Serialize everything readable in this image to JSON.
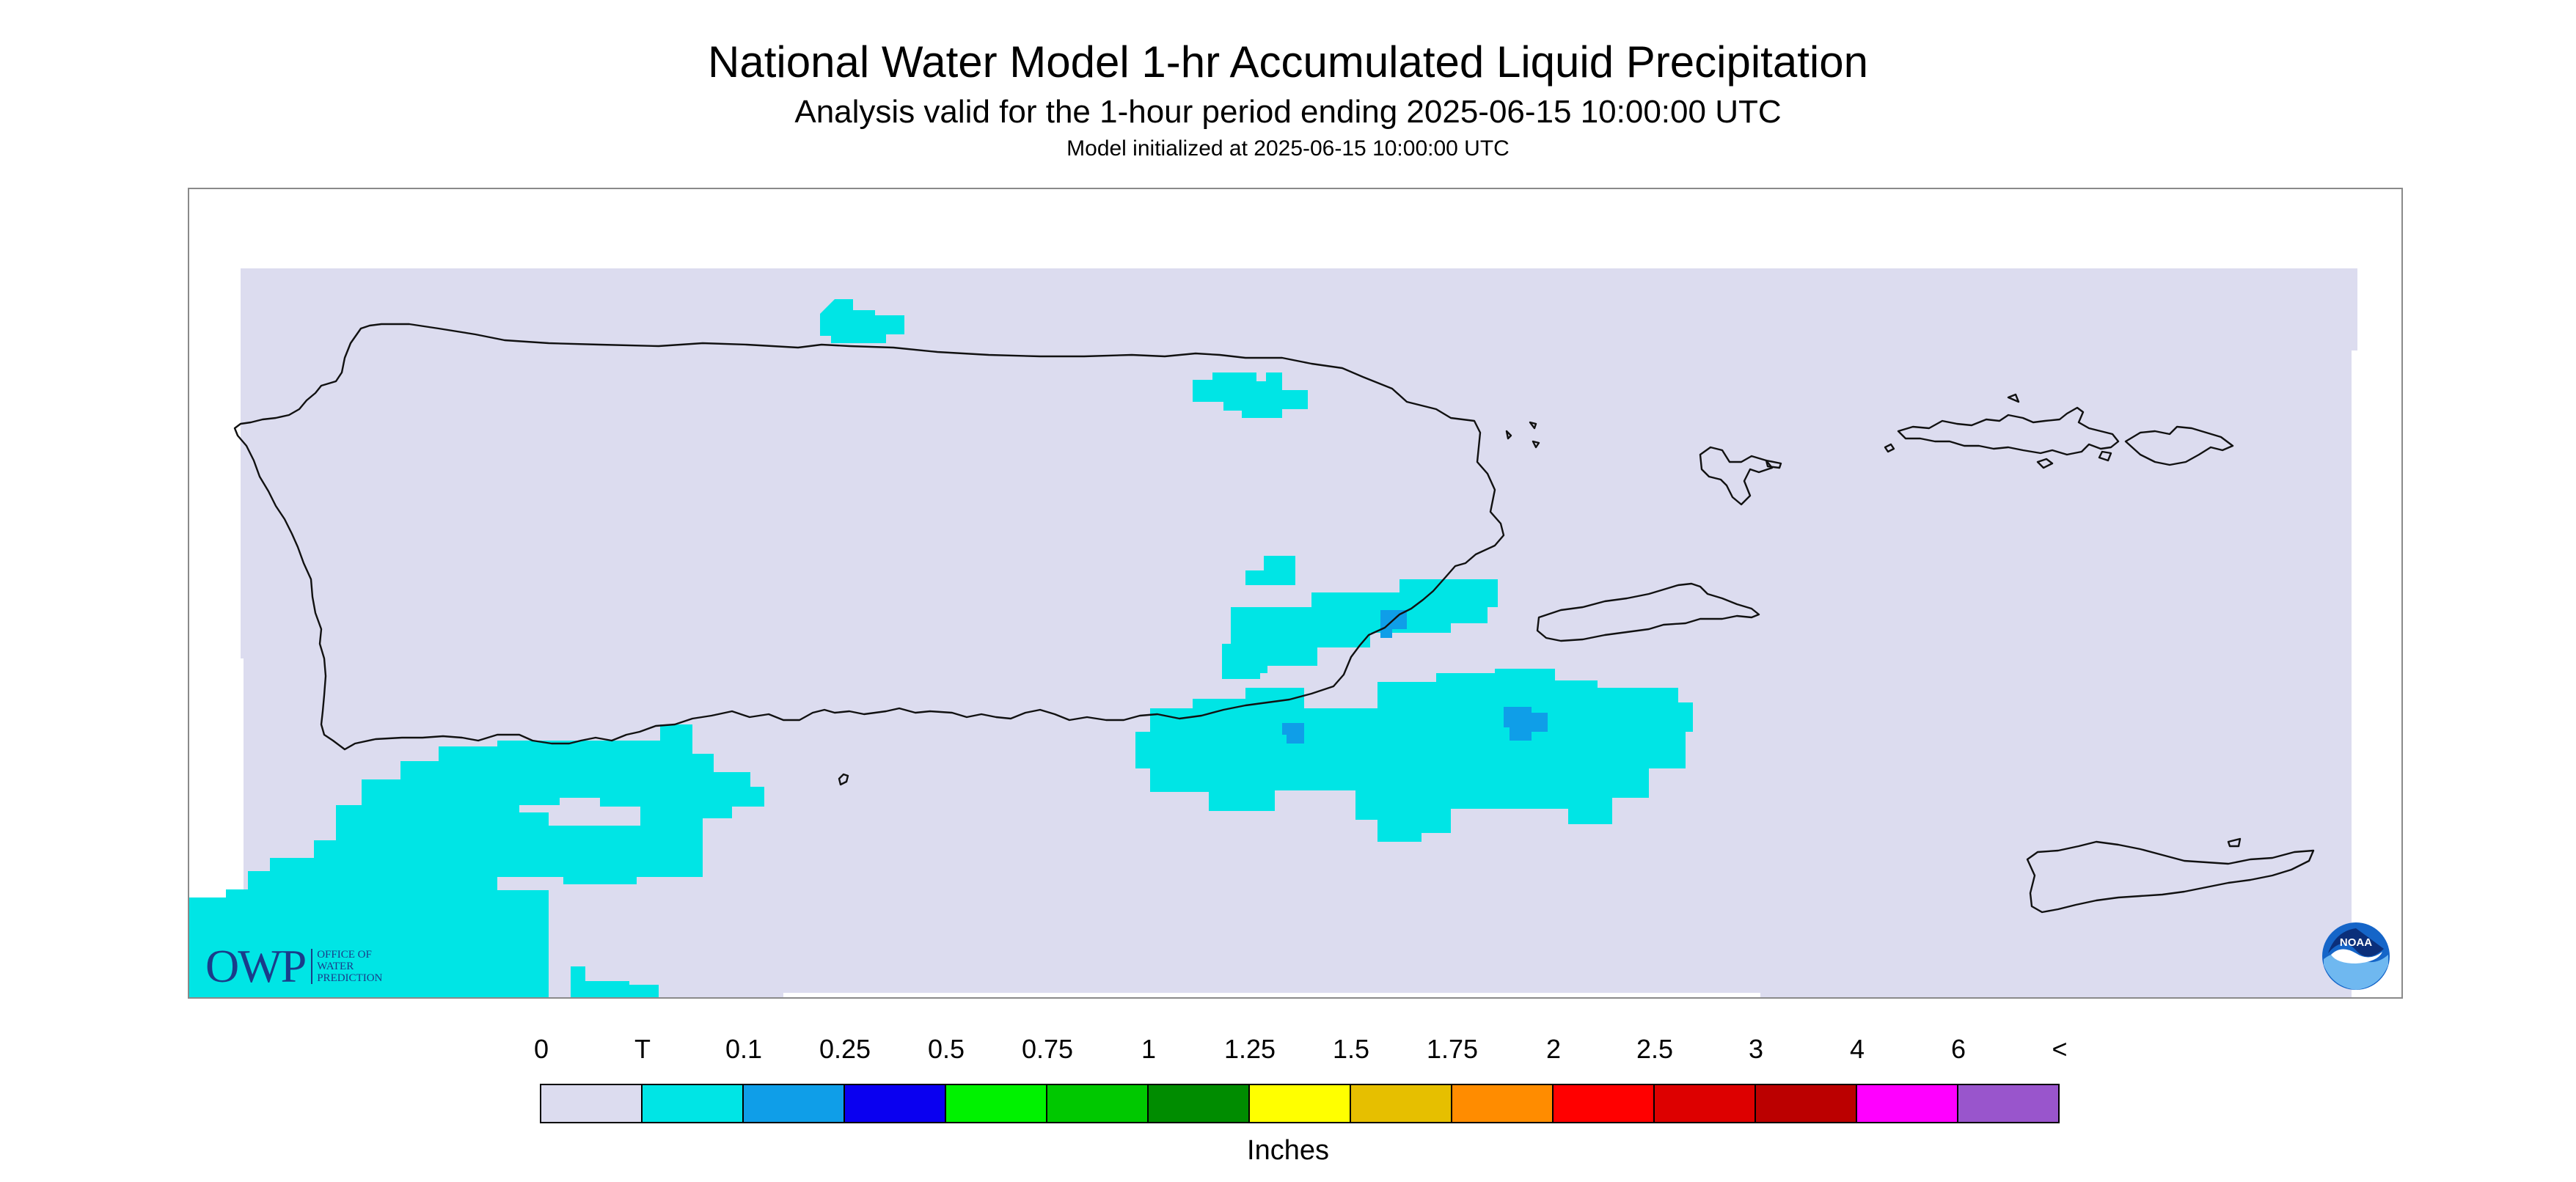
{
  "title": "National Water Model 1-hr Accumulated Liquid Precipitation",
  "subtitle": "Analysis valid for the 1-hour period ending 2025-06-15 10:00:00 UTC",
  "init_line": "Model initialized at 2025-06-15 10:00:00 UTC",
  "map": {
    "background_color": "#ffffff",
    "data_fill_color": "#dcdcef",
    "coastline_color": "#111111",
    "precip_colors": {
      "trace": "#00e5e5",
      "light": "#0f9ee8"
    }
  },
  "logos": {
    "owp_mark": "OWP",
    "owp_lines": [
      "OFFICE OF",
      "WATER",
      "PREDICTION"
    ],
    "noaa_text": "NOAA"
  },
  "legend": {
    "units": "Inches",
    "labels": [
      "0",
      "T",
      "0.1",
      "0.25",
      "0.5",
      "0.75",
      "1",
      "1.25",
      "1.5",
      "1.75",
      "2",
      "2.5",
      "3",
      "4",
      "6",
      "<"
    ],
    "colors": [
      "#dcdcef",
      "#00e5e5",
      "#0f9ee8",
      "#0a00f0",
      "#00f200",
      "#00c800",
      "#008c00",
      "#ffff00",
      "#e6bf00",
      "#ff8c00",
      "#ff0000",
      "#dd0000",
      "#bb0000",
      "#ff00ff",
      "#9955cc"
    ]
  }
}
